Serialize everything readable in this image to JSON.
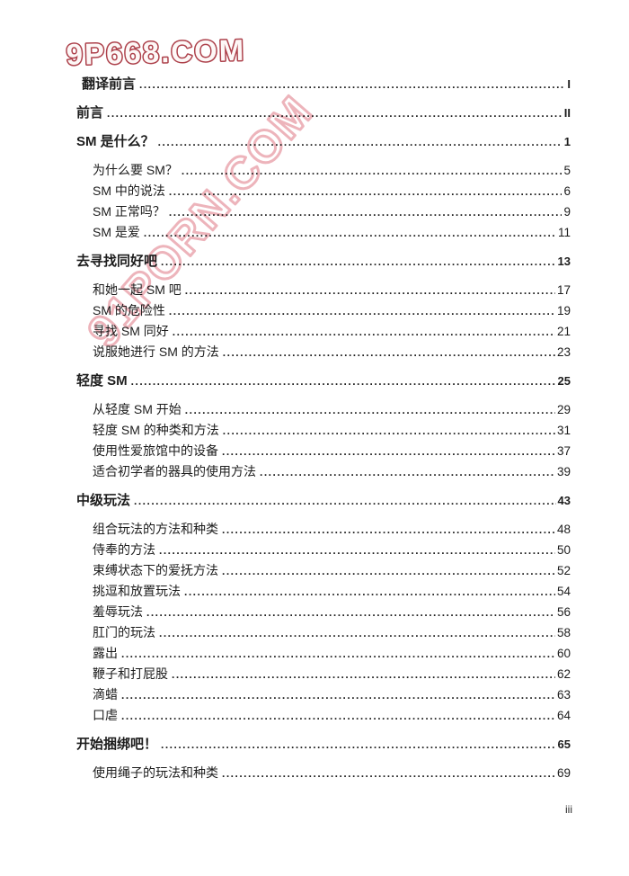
{
  "page": {
    "footer_page_label": "iii"
  },
  "watermarks": {
    "top_text": "9P668.COM",
    "top_stroke_color": "#ad414b",
    "top_fill_color": "#fdf8f7",
    "diagonal_text": "91PORN.COM",
    "diagonal_stroke_color": "#eaa7b0"
  },
  "toc": {
    "entries": [
      {
        "level": 1,
        "first_indent": true,
        "title": "翻译前言",
        "page": "I"
      },
      {
        "level": 1,
        "first_indent": false,
        "title": "前言",
        "page": "II"
      },
      {
        "level": 1,
        "first_indent": false,
        "title": "SM 是什么？",
        "page": "1"
      },
      {
        "level": 2,
        "first_indent": false,
        "title": "为什么要 SM？",
        "page": "5"
      },
      {
        "level": 2,
        "first_indent": false,
        "title": "SM 中的说法",
        "page": "6"
      },
      {
        "level": 2,
        "first_indent": false,
        "title": "SM 正常吗？",
        "page": "9"
      },
      {
        "level": 2,
        "first_indent": false,
        "title": "SM 是爱",
        "page": "11"
      },
      {
        "level": 1,
        "first_indent": false,
        "title": "去寻找同好吧",
        "page": "13"
      },
      {
        "level": 2,
        "first_indent": false,
        "title": "和她一起 SM 吧",
        "page": "17"
      },
      {
        "level": 2,
        "first_indent": false,
        "title": "SM 的危险性",
        "page": "19"
      },
      {
        "level": 2,
        "first_indent": false,
        "title": "寻找 SM 同好",
        "page": "21"
      },
      {
        "level": 2,
        "first_indent": false,
        "title": "说服她进行 SM 的方法",
        "page": "23"
      },
      {
        "level": 1,
        "first_indent": false,
        "title": "轻度 SM",
        "page": "25"
      },
      {
        "level": 2,
        "first_indent": false,
        "title": "从轻度 SM 开始",
        "page": "29"
      },
      {
        "level": 2,
        "first_indent": false,
        "title": "轻度 SM 的种类和方法",
        "page": "31"
      },
      {
        "level": 2,
        "first_indent": false,
        "title": "使用性爱旅馆中的设备",
        "page": "37"
      },
      {
        "level": 2,
        "first_indent": false,
        "title": "适合初学者的器具的使用方法",
        "page": "39"
      },
      {
        "level": 1,
        "first_indent": false,
        "title": "中级玩法",
        "page": "43"
      },
      {
        "level": 2,
        "first_indent": false,
        "title": "组合玩法的方法和种类",
        "page": "48"
      },
      {
        "level": 2,
        "first_indent": false,
        "title": "侍奉的方法",
        "page": "50"
      },
      {
        "level": 2,
        "first_indent": false,
        "title": "束缚状态下的爱抚方法",
        "page": "52"
      },
      {
        "level": 2,
        "first_indent": false,
        "title": "挑逗和放置玩法",
        "page": "54"
      },
      {
        "level": 2,
        "first_indent": false,
        "title": "羞辱玩法",
        "page": "56"
      },
      {
        "level": 2,
        "first_indent": false,
        "title": "肛门的玩法",
        "page": "58"
      },
      {
        "level": 2,
        "first_indent": false,
        "title": "露出",
        "page": "60"
      },
      {
        "level": 2,
        "first_indent": false,
        "title": "鞭子和打屁股",
        "page": "62"
      },
      {
        "level": 2,
        "first_indent": false,
        "title": "滴蜡",
        "page": "63"
      },
      {
        "level": 2,
        "first_indent": false,
        "title": "口虐",
        "page": "64"
      },
      {
        "level": 1,
        "first_indent": false,
        "title": "开始捆绑吧！",
        "page": "65"
      },
      {
        "level": 2,
        "first_indent": false,
        "title": "使用绳子的玩法和种类",
        "page": "69"
      }
    ]
  }
}
